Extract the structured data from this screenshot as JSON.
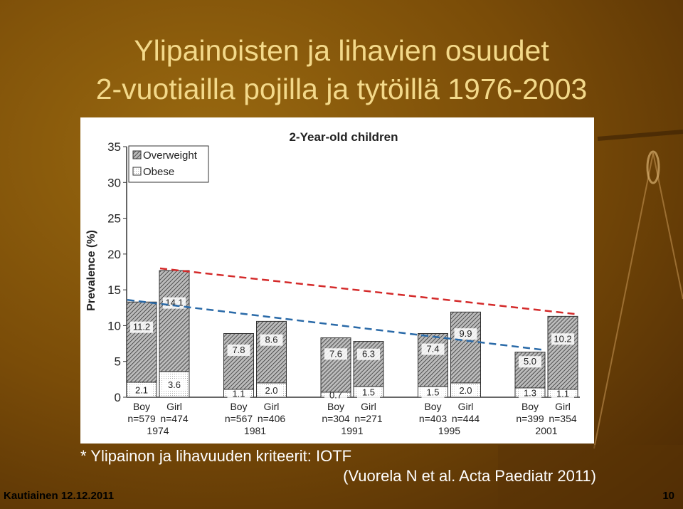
{
  "slide_title": [
    "Ylipainoisten ja lihavien osuudet",
    "2-vuotiailla pojilla ja tytöillä 1976-2003"
  ],
  "footnote": "* Ylipainon ja lihavuuden kriteerit: IOTF",
  "citation": "(Vuorela N et al. Acta Paediatr 2011)",
  "footer": "Kautiainen 12.12.2011",
  "page_number": "10",
  "chart_data": {
    "type": "stacked_bar",
    "title": "2-Year-old children",
    "y_label": "Prevalence (%)",
    "categories": [
      "Boy",
      "Girl",
      "Boy",
      "Girl",
      "Boy",
      "Girl",
      "Boy",
      "Girl",
      "Boy",
      "Girl"
    ],
    "sample_sizes": [
      "n=579",
      "n=474",
      "n=567",
      "n=406",
      "n=304",
      "n=271",
      "n=403",
      "n=444",
      "n=399",
      "n=354"
    ],
    "groups": [
      "1974",
      "1981",
      "1991",
      "1995",
      "2001"
    ],
    "series": [
      {
        "name": "Obese",
        "color": "#ffffff",
        "values": [
          2.1,
          3.6,
          1.1,
          2,
          0.7,
          1.5,
          1.5,
          2,
          1.3,
          1.1
        ],
        "value_labels": [
          "2.1",
          "3.6",
          "1.1",
          "2.0",
          "0.7",
          "1.5",
          "1.5",
          "2.0",
          "1.3",
          "1.1"
        ]
      },
      {
        "name": "Overweight",
        "color": "#555555",
        "values": [
          11.2,
          14.1,
          7.8,
          8.6,
          7.6,
          6.3,
          7.4,
          9.9,
          5,
          10.2
        ],
        "value_labels": [
          "11.2",
          "14.1",
          "7.8",
          "8.6",
          "7.6",
          "6.3",
          "7.4",
          "9.9",
          "5.0",
          "10.2"
        ]
      }
    ],
    "ylim": [
      0,
      35
    ],
    "yticks": [
      0,
      5,
      10,
      15,
      20,
      25,
      30,
      35
    ],
    "trend_line_colors": [
      "#2a6aa8",
      "#d42a2a"
    ]
  }
}
